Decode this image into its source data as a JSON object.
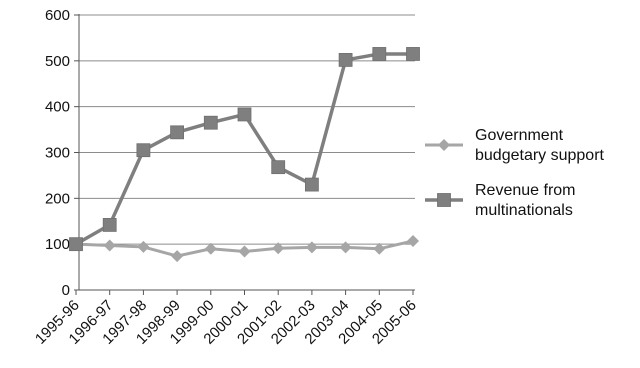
{
  "chart_data": {
    "type": "line",
    "categories": [
      "1995-96",
      "1996-97",
      "1997-98",
      "1998-99",
      "1999-00",
      "2000-01",
      "2001-02",
      "2002-03",
      "2003-04",
      "2004-05",
      "2005-06"
    ],
    "series": [
      {
        "name": "Government budgetary support",
        "name_lines": [
          "Government",
          "budgetary support"
        ],
        "color": "#a6a6a6",
        "marker": "diamond",
        "values": [
          100,
          97,
          94,
          74,
          90,
          84,
          91,
          93,
          93,
          90,
          107
        ]
      },
      {
        "name": "Revenue from multinationals",
        "name_lines": [
          "Revenue from",
          "multinationals"
        ],
        "color": "#7f7f7f",
        "marker": "square",
        "values": [
          100,
          142,
          305,
          344,
          365,
          383,
          268,
          230,
          502,
          515,
          515
        ]
      }
    ],
    "ylim": [
      0,
      600
    ],
    "yticks": [
      0,
      100,
      200,
      300,
      400,
      500,
      600
    ],
    "grid": true,
    "legend_position": "right"
  }
}
